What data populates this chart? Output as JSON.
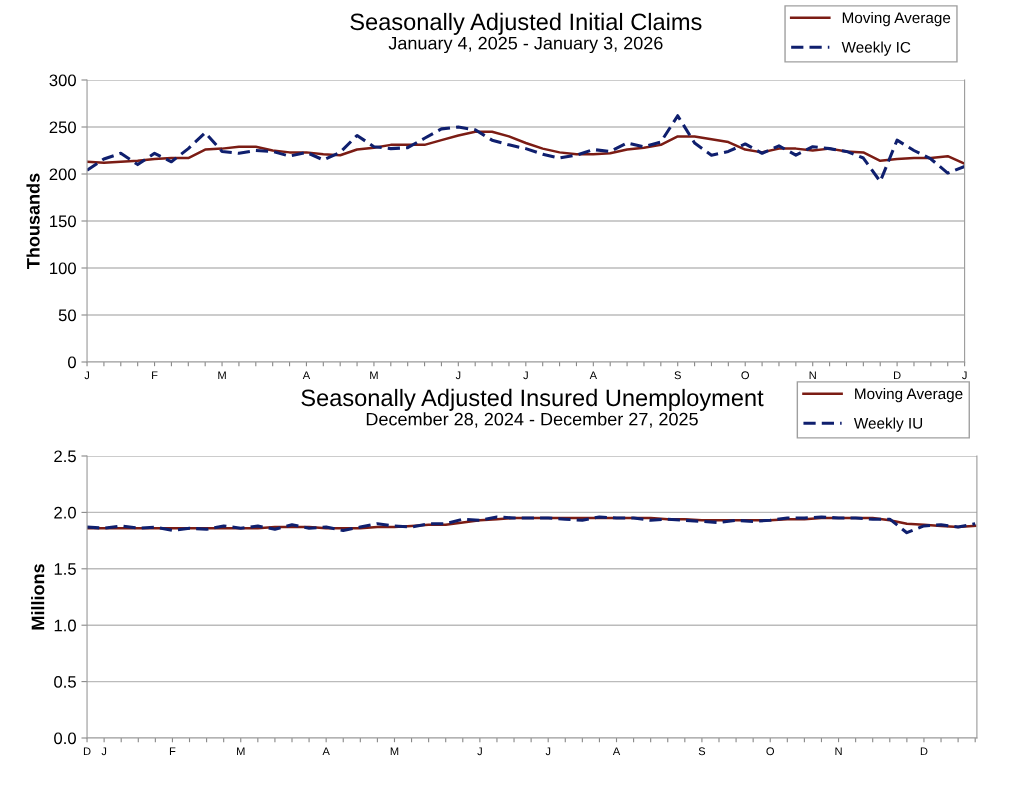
{
  "chart_data": [
    {
      "type": "line",
      "title": "Seasonally Adjusted Initial Claims",
      "subtitle": "January 4, 2025 - January 3, 2026",
      "ylabel": "Thousands",
      "categories": [
        "J",
        null,
        null,
        null,
        "F",
        null,
        null,
        null,
        "M",
        null,
        null,
        null,
        null,
        "A",
        null,
        null,
        null,
        "M",
        null,
        null,
        null,
        null,
        "J",
        null,
        null,
        null,
        "J",
        null,
        null,
        null,
        "A",
        null,
        null,
        null,
        null,
        "S",
        null,
        null,
        null,
        "O",
        null,
        null,
        null,
        "N",
        null,
        null,
        null,
        null,
        "D",
        null,
        null,
        null,
        "J"
      ],
      "ylim": [
        0,
        300
      ],
      "yticks": [
        0,
        50,
        100,
        150,
        200,
        250,
        300
      ],
      "grid": "y",
      "legend": "top right",
      "marker": "none",
      "series": [
        {
          "name": "Moving Average",
          "color": "#7b1c14",
          "line_style": "solid",
          "values": [
            213,
            212,
            213,
            214,
            216,
            217,
            217,
            226,
            227,
            229,
            229,
            225,
            223,
            223,
            221,
            220,
            226,
            228,
            231,
            231,
            231,
            236,
            241,
            245,
            245,
            240,
            233,
            227,
            223,
            221,
            221,
            222,
            226,
            228,
            231,
            240,
            240,
            237,
            234,
            226,
            223,
            227,
            227,
            225,
            227,
            224,
            223,
            214,
            216,
            217,
            217,
            219,
            211
          ]
        },
        {
          "name": "Weekly IC",
          "color": "#0f1f6e",
          "line_style": "dashed",
          "values": [
            204,
            216,
            222,
            210,
            222,
            213,
            227,
            244,
            224,
            222,
            225,
            224,
            219,
            223,
            215,
            223,
            241,
            229,
            227,
            228,
            238,
            248,
            250,
            247,
            236,
            231,
            227,
            221,
            217,
            220,
            226,
            224,
            233,
            229,
            234,
            262,
            233,
            220,
            224,
            232,
            222,
            230,
            220,
            229,
            227,
            224,
            217,
            192,
            236,
            225,
            216,
            201,
            208
          ]
        }
      ]
    },
    {
      "type": "line",
      "title": "Seasonally Adjusted Insured Unemployment",
      "subtitle": "December 28, 2024 - December 27, 2025",
      "ylabel": "Millions",
      "categories": [
        "D",
        "J",
        null,
        null,
        null,
        "F",
        null,
        null,
        null,
        "M",
        null,
        null,
        null,
        null,
        "A",
        null,
        null,
        null,
        "M",
        null,
        null,
        null,
        null,
        "J",
        null,
        null,
        null,
        "J",
        null,
        null,
        null,
        "A",
        null,
        null,
        null,
        null,
        "S",
        null,
        null,
        null,
        "O",
        null,
        null,
        null,
        "N",
        null,
        null,
        null,
        null,
        "D",
        null,
        null,
        null
      ],
      "ylim": [
        0,
        2.5
      ],
      "yticks": [
        {
          "value": 0,
          "label": "0.0"
        },
        {
          "value": 0.5,
          "label": "0.5"
        },
        {
          "value": 1,
          "label": "1.0"
        },
        {
          "value": 1.5,
          "label": "1.5"
        },
        {
          "value": 2,
          "label": "2.0"
        },
        {
          "value": 2.5,
          "label": "2.5"
        }
      ],
      "grid": "y",
      "legend": "top right",
      "marker": "none",
      "series": [
        {
          "name": "Moving Average",
          "color": "#7b1c14",
          "line_style": "solid",
          "values": [
            1.86,
            1.86,
            1.86,
            1.86,
            1.86,
            1.86,
            1.86,
            1.86,
            1.86,
            1.86,
            1.86,
            1.87,
            1.87,
            1.87,
            1.86,
            1.86,
            1.86,
            1.87,
            1.87,
            1.88,
            1.89,
            1.89,
            1.91,
            1.93,
            1.94,
            1.95,
            1.95,
            1.95,
            1.95,
            1.95,
            1.95,
            1.95,
            1.95,
            1.95,
            1.94,
            1.94,
            1.93,
            1.93,
            1.93,
            1.93,
            1.93,
            1.94,
            1.94,
            1.95,
            1.95,
            1.95,
            1.95,
            1.93,
            1.9,
            1.89,
            1.88,
            1.87,
            1.88
          ]
        },
        {
          "name": "Weekly IU",
          "color": "#0f1f6e",
          "line_style": "dashed",
          "values": [
            1.87,
            1.86,
            1.88,
            1.86,
            1.87,
            1.84,
            1.86,
            1.85,
            1.88,
            1.86,
            1.88,
            1.85,
            1.89,
            1.86,
            1.87,
            1.84,
            1.87,
            1.9,
            1.88,
            1.87,
            1.9,
            1.9,
            1.94,
            1.93,
            1.96,
            1.95,
            1.95,
            1.95,
            1.94,
            1.93,
            1.96,
            1.95,
            1.95,
            1.93,
            1.94,
            1.93,
            1.92,
            1.91,
            1.93,
            1.92,
            1.93,
            1.95,
            1.95,
            1.96,
            1.95,
            1.95,
            1.94,
            1.94,
            1.82,
            1.88,
            1.89,
            1.87,
            1.9
          ]
        }
      ]
    }
  ]
}
